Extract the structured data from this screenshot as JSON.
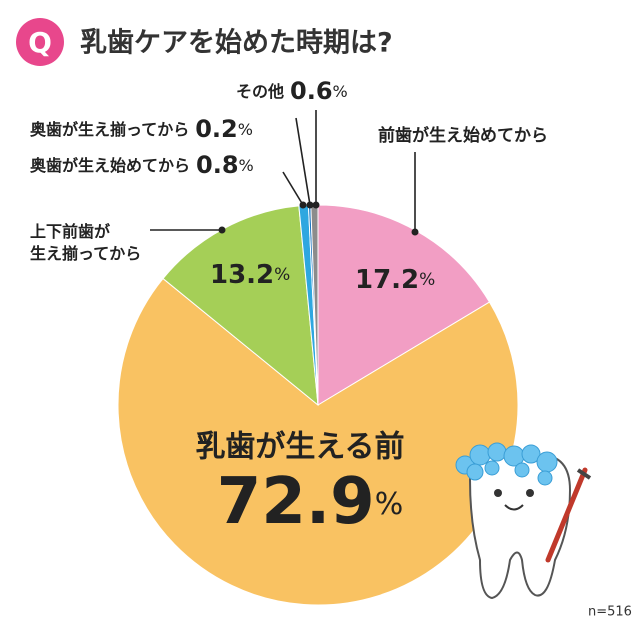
{
  "chart_data": {
    "type": "pie",
    "badge": "Q",
    "title": "乳歯ケアを始めた時期は?",
    "unit": "%",
    "categories": [
      "前歯が生え始めてから",
      "乳歯が生える前",
      "上下前歯が\n生え揃ってから",
      "奥歯が生え始めてから",
      "奥歯が生え揃ってから",
      "その他"
    ],
    "values": [
      17.2,
      72.9,
      13.2,
      0.8,
      0.2,
      0.6
    ],
    "colors": [
      "#f29ec4",
      "#f9c262",
      "#a5cf57",
      "#2ea7e0",
      "#1f78c1",
      "#8c8c8c"
    ],
    "note": "n=516"
  }
}
